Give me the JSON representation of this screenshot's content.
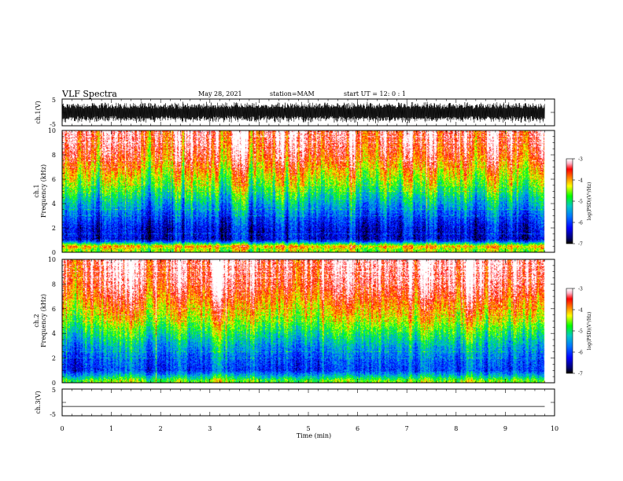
{
  "header": {
    "title": "VLF Spectra",
    "date": "May 28, 2021",
    "station": "station=MAM",
    "start": "start UT =  12: 0  : 1"
  },
  "colors": {
    "scale": [
      "#ffffff",
      "#ffd0d8",
      "#ff0000",
      "#ff8000",
      "#ffff00",
      "#00ff00",
      "#00c8c8",
      "#0078ff",
      "#0000ff",
      "#000080",
      "#000000"
    ]
  },
  "chart_data": [
    {
      "type": "line",
      "panel": "ch1-waveform",
      "ylabel": "ch.1(V)",
      "ylim": [
        -5,
        5
      ],
      "yticks": [
        "5",
        "-5"
      ],
      "xlim": [
        0,
        10
      ],
      "description_of_signal": "dense noise waveform spanning roughly -4 to 4 V"
    },
    {
      "type": "heatmap",
      "panel": "ch1-spectrogram",
      "ylabel_line1": "ch.1",
      "ylabel_line2": "Frequency (kHz)",
      "ylim": [
        0,
        10
      ],
      "yticks": [
        "0",
        "2",
        "4",
        "6",
        "8",
        "10"
      ],
      "xlim": [
        0,
        10
      ],
      "data_extent_min": 9.8,
      "colorbar": {
        "label": "log(PSD)(V²/Hz)",
        "range": [
          -7,
          -3
        ],
        "ticks": [
          "-3",
          "-4",
          "-5",
          "-6",
          "-7"
        ]
      },
      "band_log_psd": [
        {
          "f": 0.2,
          "v": -4.5
        },
        {
          "f": 0.5,
          "v": -4.0
        },
        {
          "f": 1.0,
          "v": -6.4
        },
        {
          "f": 2.0,
          "v": -6.3
        },
        {
          "f": 3.0,
          "v": -5.9
        },
        {
          "f": 4.0,
          "v": -5.4
        },
        {
          "f": 5.0,
          "v": -4.9
        },
        {
          "f": 6.0,
          "v": -4.4
        },
        {
          "f": 7.0,
          "v": -4.0
        },
        {
          "f": 8.0,
          "v": -3.6
        },
        {
          "f": 9.0,
          "v": -3.4
        },
        {
          "f": 10.0,
          "v": -3.3
        }
      ]
    },
    {
      "type": "heatmap",
      "panel": "ch2-spectrogram",
      "ylabel_line1": "ch.2",
      "ylabel_line2": "Frequency (kHz)",
      "ylim": [
        0,
        10
      ],
      "yticks": [
        "0",
        "2",
        "4",
        "6",
        "8",
        "10"
      ],
      "xlim": [
        0,
        10
      ],
      "data_extent_min": 9.8,
      "colorbar": {
        "label": "log(PSD)(V²/Hz)",
        "range": [
          -7,
          -3
        ],
        "ticks": [
          "-3",
          "-4",
          "-5",
          "-6",
          "-7"
        ]
      },
      "band_log_psd": [
        {
          "f": 0.2,
          "v": -4.6
        },
        {
          "f": 0.5,
          "v": -5.2
        },
        {
          "f": 1.0,
          "v": -6.0
        },
        {
          "f": 2.0,
          "v": -5.8
        },
        {
          "f": 3.0,
          "v": -5.4
        },
        {
          "f": 4.0,
          "v": -4.9
        },
        {
          "f": 5.0,
          "v": -4.4
        },
        {
          "f": 6.0,
          "v": -4.0
        },
        {
          "f": 7.0,
          "v": -3.6
        },
        {
          "f": 8.0,
          "v": -3.3
        },
        {
          "f": 9.0,
          "v": -3.2
        },
        {
          "f": 10.0,
          "v": -3.1
        }
      ]
    },
    {
      "type": "line",
      "panel": "ch3-waveform",
      "ylabel": "ch.3(V)",
      "ylim": [
        -5,
        5
      ],
      "yticks": [
        "5",
        "-5"
      ],
      "xlim": [
        0,
        10
      ],
      "xlabel": "Time (min)",
      "xticks": [
        "0",
        "1",
        "2",
        "3",
        "4",
        "5",
        "6",
        "7",
        "8",
        "9",
        "10"
      ],
      "x": [
        0,
        9.8
      ],
      "y": [
        -1.5,
        -1.5
      ]
    }
  ]
}
